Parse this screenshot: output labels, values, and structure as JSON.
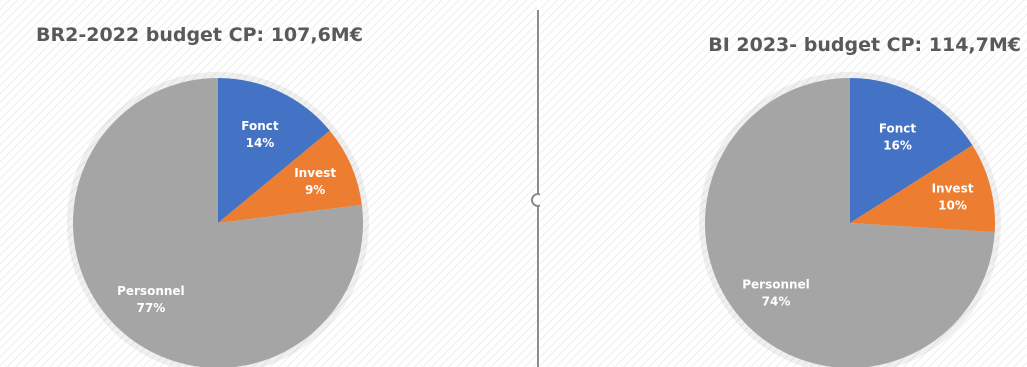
{
  "chart_data": [
    {
      "type": "pie",
      "title": "BR2-2022 budget CP: 107,6M€",
      "slices": [
        {
          "name": "Fonct",
          "value": 14,
          "label": "14%",
          "color": "#4472C4"
        },
        {
          "name": "Invest",
          "value": 9,
          "label": "9%",
          "color": "#ED7D31"
        },
        {
          "name": "Personnel",
          "value": 77,
          "label": "77%",
          "color": "#A5A5A5"
        }
      ]
    },
    {
      "type": "pie",
      "title": "BI 2023- budget CP: 114,7M€",
      "slices": [
        {
          "name": "Fonct",
          "value": 16,
          "label": "16%",
          "color": "#4472C4"
        },
        {
          "name": "Invest",
          "value": 10,
          "label": "10%",
          "color": "#ED7D31"
        },
        {
          "name": "Personnel",
          "value": 74,
          "label": "74%",
          "color": "#A5A5A5"
        }
      ]
    }
  ]
}
